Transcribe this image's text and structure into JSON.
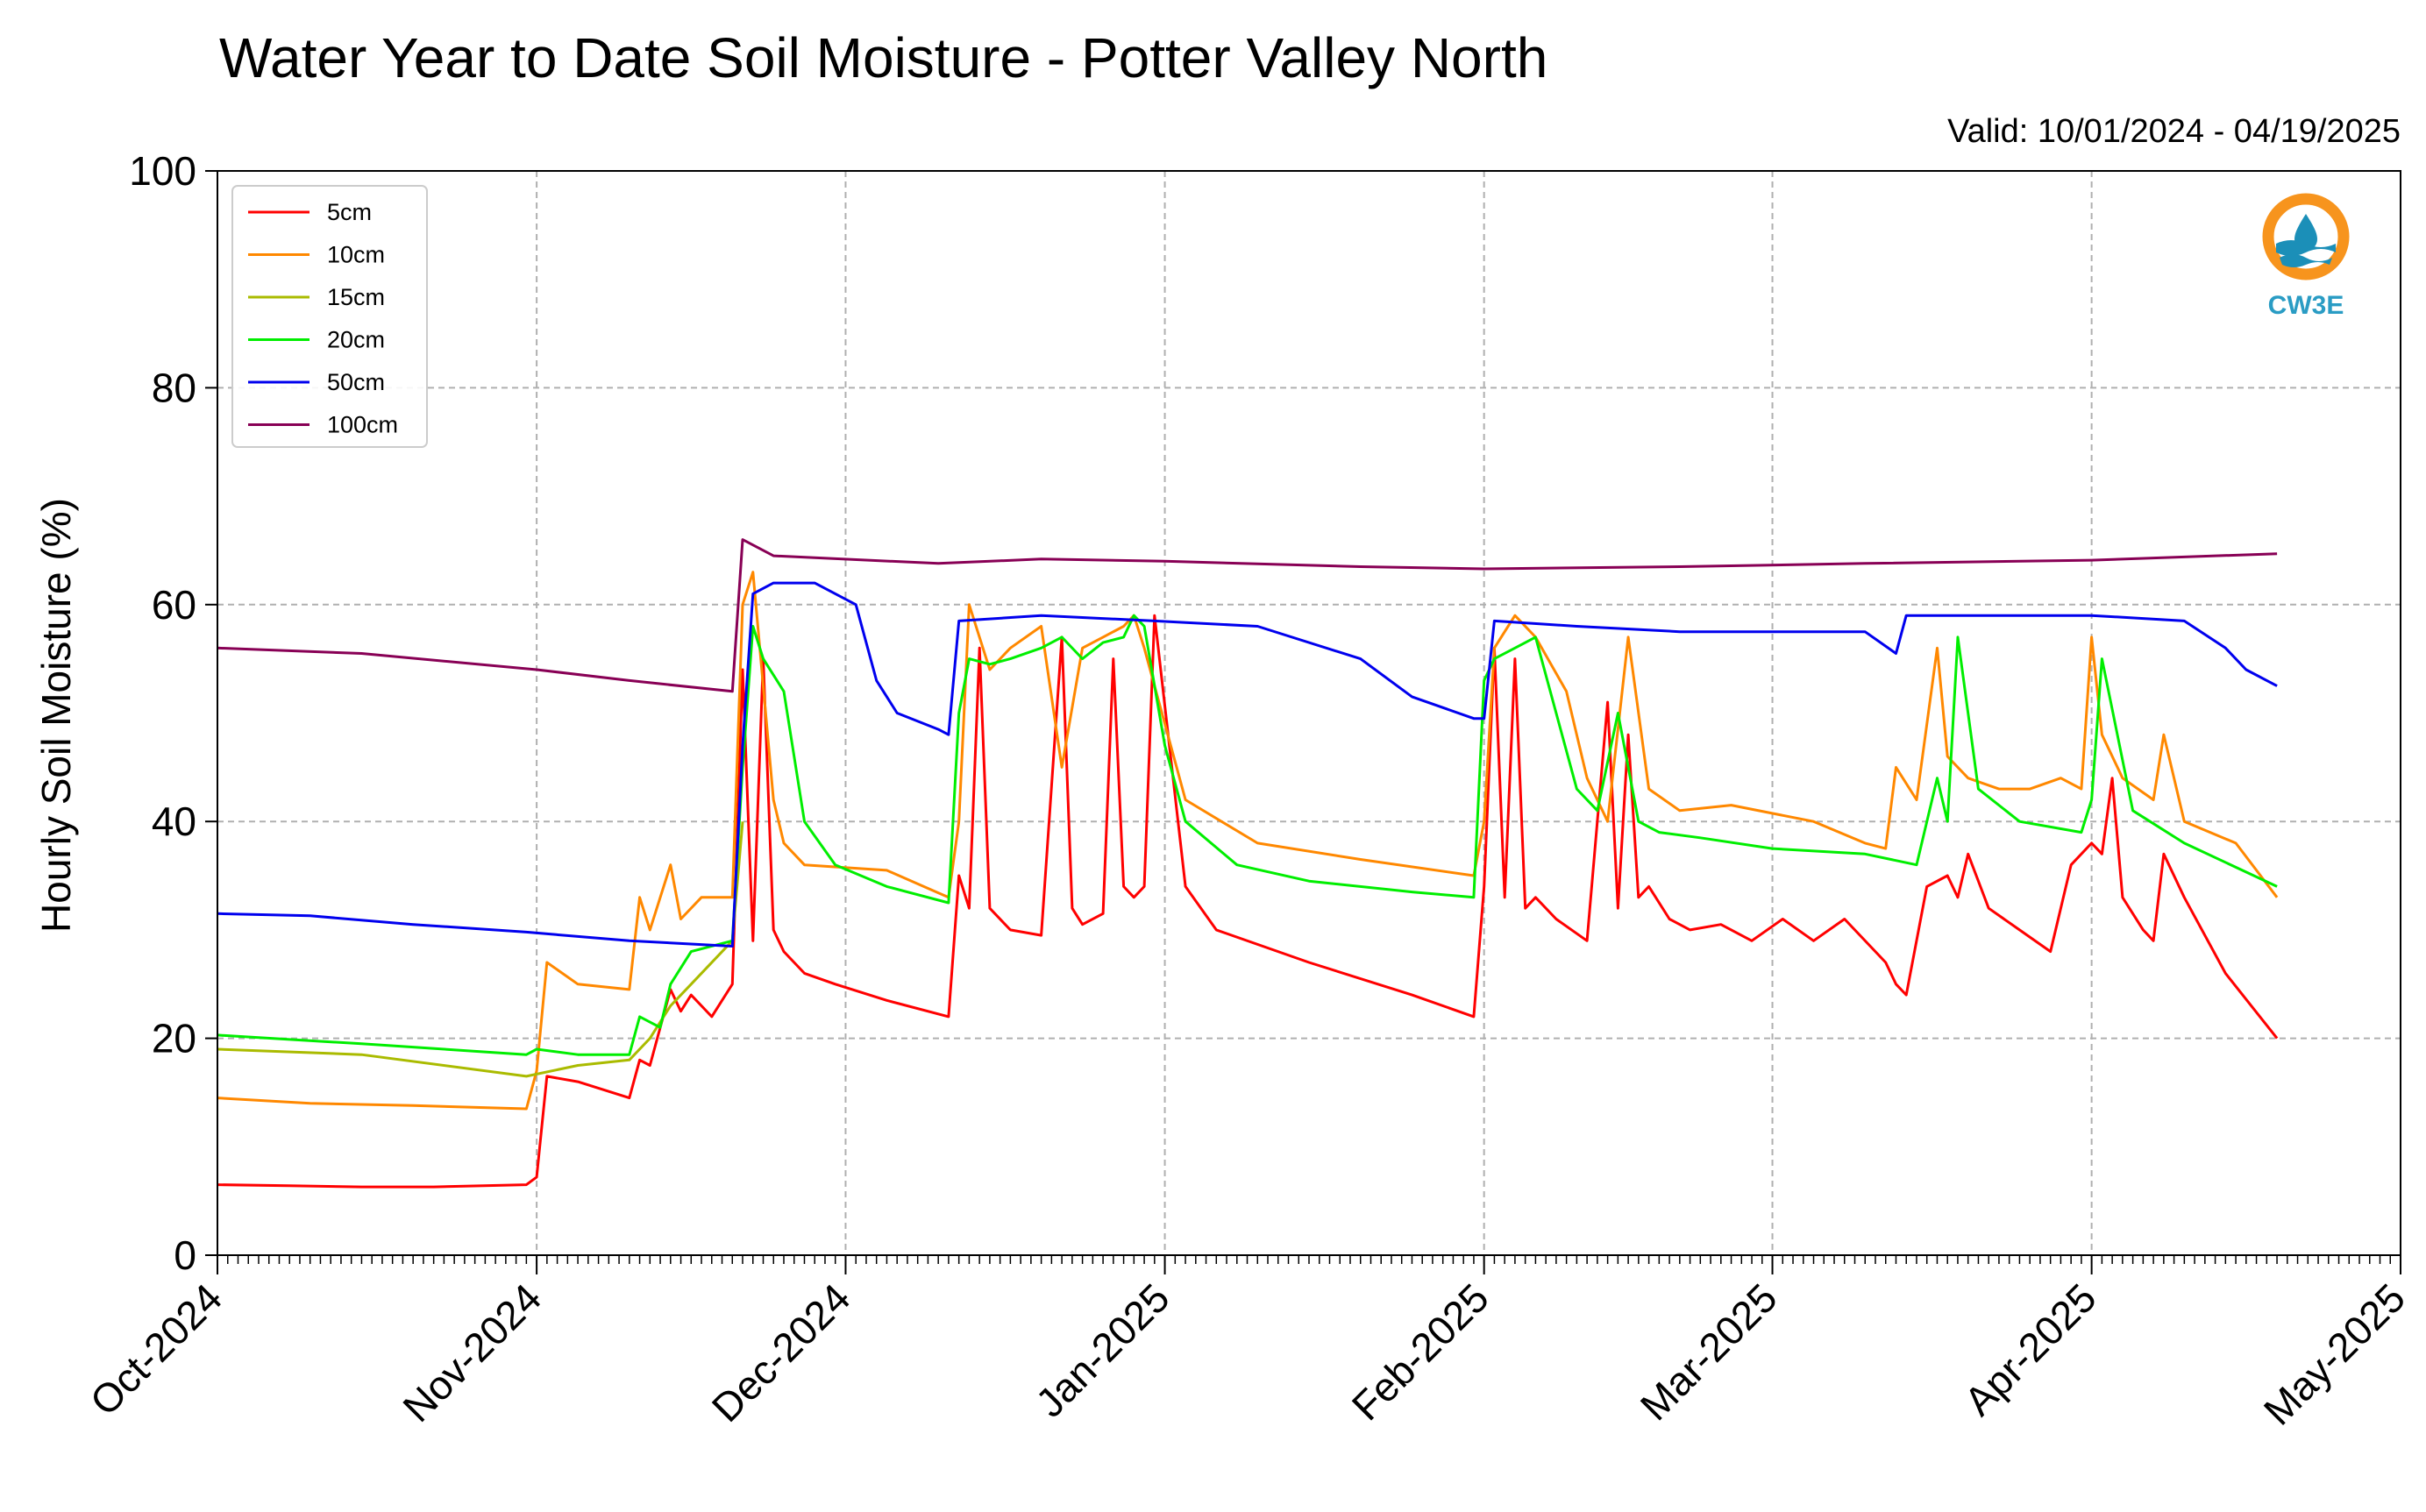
{
  "chart_data": {
    "type": "line",
    "title": "Water Year to Date Soil Moisture - Potter Valley North",
    "subtitle": "Valid: 10/01/2024 - 04/19/2025",
    "ylabel": "Hourly Soil Moisture (%)",
    "xlabel": "",
    "ylim": [
      0,
      100
    ],
    "xlim": [
      "2024-10-01",
      "2025-05-01"
    ],
    "y_ticks": [
      "0",
      "20",
      "40",
      "60",
      "80",
      "100"
    ],
    "x_ticks": [
      "Oct-2024",
      "Nov-2024",
      "Dec-2024",
      "Jan-2025",
      "Feb-2025",
      "Mar-2025",
      "Apr-2025",
      "May-2025"
    ],
    "grid": true,
    "legend_position": "top-left",
    "series": [
      {
        "name": "5cm",
        "color": "#ff0000",
        "x": [
          "2024-10-01",
          "2024-10-08",
          "2024-10-15",
          "2024-10-22",
          "2024-10-31",
          "2024-11-01",
          "2024-11-02",
          "2024-11-05",
          "2024-11-10",
          "2024-11-11",
          "2024-11-12",
          "2024-11-14",
          "2024-11-15",
          "2024-11-16",
          "2024-11-18",
          "2024-11-20",
          "2024-11-21",
          "2024-11-22",
          "2024-11-23",
          "2024-11-24",
          "2024-11-25",
          "2024-11-27",
          "2024-11-30",
          "2024-12-05",
          "2024-12-11",
          "2024-12-12",
          "2024-12-13",
          "2024-12-14",
          "2024-12-15",
          "2024-12-17",
          "2024-12-20",
          "2024-12-22",
          "2024-12-23",
          "2024-12-24",
          "2024-12-26",
          "2024-12-27",
          "2024-12-28",
          "2024-12-29",
          "2024-12-30",
          "2024-12-31",
          "2025-01-03",
          "2025-01-06",
          "2025-01-15",
          "2025-01-25",
          "2025-01-31",
          "2025-02-01",
          "2025-02-02",
          "2025-02-03",
          "2025-02-04",
          "2025-02-05",
          "2025-02-06",
          "2025-02-08",
          "2025-02-11",
          "2025-02-13",
          "2025-02-14",
          "2025-02-15",
          "2025-02-16",
          "2025-02-17",
          "2025-02-19",
          "2025-02-21",
          "2025-02-24",
          "2025-02-27",
          "2025-03-02",
          "2025-03-05",
          "2025-03-08",
          "2025-03-12",
          "2025-03-13",
          "2025-03-14",
          "2025-03-16",
          "2025-03-18",
          "2025-03-19",
          "2025-03-20",
          "2025-03-22",
          "2025-03-25",
          "2025-03-28",
          "2025-03-30",
          "2025-04-01",
          "2025-04-02",
          "2025-04-03",
          "2025-04-04",
          "2025-04-06",
          "2025-04-07",
          "2025-04-08",
          "2025-04-10",
          "2025-04-14",
          "2025-04-19"
        ],
        "values": [
          6.5,
          6.4,
          6.3,
          6.3,
          6.5,
          7.2,
          16.5,
          16,
          14.5,
          18,
          17.5,
          24.5,
          22.5,
          24,
          22,
          25,
          54,
          29,
          55,
          30,
          28,
          26,
          25,
          23.5,
          22,
          35,
          32,
          56,
          32,
          30,
          29.5,
          57,
          32,
          30.5,
          31.5,
          55,
          34,
          33,
          34,
          59,
          34,
          30,
          27,
          24,
          22,
          34,
          56,
          33,
          55,
          32,
          33,
          31,
          29,
          51,
          32,
          48,
          33,
          34,
          31,
          30,
          30.5,
          29,
          31,
          29,
          31,
          27,
          25,
          24,
          34,
          35,
          33,
          37,
          32,
          30,
          28,
          36,
          38,
          37,
          44,
          33,
          30,
          29,
          37,
          33,
          26,
          20
        ]
      },
      {
        "name": "10cm",
        "color": "#ff8800",
        "x": [
          "2024-10-01",
          "2024-10-10",
          "2024-10-20",
          "2024-10-31",
          "2024-11-01",
          "2024-11-02",
          "2024-11-05",
          "2024-11-10",
          "2024-11-11",
          "2024-11-12",
          "2024-11-14",
          "2024-11-15",
          "2024-11-17",
          "2024-11-20",
          "2024-11-21",
          "2024-11-22",
          "2024-11-24",
          "2024-11-25",
          "2024-11-27",
          "2024-12-05",
          "2024-12-11",
          "2024-12-12",
          "2024-12-13",
          "2024-12-15",
          "2024-12-17",
          "2024-12-20",
          "2024-12-22",
          "2024-12-24",
          "2024-12-26",
          "2024-12-28",
          "2024-12-29",
          "2024-12-30",
          "2025-01-03",
          "2025-01-10",
          "2025-01-20",
          "2025-01-31",
          "2025-02-01",
          "2025-02-02",
          "2025-02-04",
          "2025-02-06",
          "2025-02-09",
          "2025-02-11",
          "2025-02-13",
          "2025-02-15",
          "2025-02-17",
          "2025-02-20",
          "2025-02-25",
          "2025-03-05",
          "2025-03-10",
          "2025-03-12",
          "2025-03-13",
          "2025-03-15",
          "2025-03-17",
          "2025-03-18",
          "2025-03-20",
          "2025-03-23",
          "2025-03-26",
          "2025-03-29",
          "2025-03-31",
          "2025-04-01",
          "2025-04-02",
          "2025-04-04",
          "2025-04-07",
          "2025-04-08",
          "2025-04-10",
          "2025-04-15",
          "2025-04-19"
        ],
        "values": [
          14.5,
          14,
          13.8,
          13.5,
          17,
          27,
          25,
          24.5,
          33,
          30,
          36,
          31,
          33,
          33,
          60,
          63,
          42,
          38,
          36,
          35.5,
          33,
          40,
          60,
          54,
          56,
          58,
          45,
          56,
          57,
          58,
          59,
          56,
          42,
          38,
          36.5,
          35,
          40,
          56,
          59,
          57,
          52,
          44,
          40,
          57,
          43,
          41,
          41.5,
          40,
          38,
          37.5,
          45,
          42,
          56,
          46,
          44,
          43,
          43,
          44,
          43,
          57,
          48,
          44,
          42,
          48,
          40,
          38,
          33
        ]
      },
      {
        "name": "15cm",
        "color": "#aabb00",
        "x": [
          "2024-10-01",
          "2024-10-15",
          "2024-10-31",
          "2024-11-05",
          "2024-11-10",
          "2024-11-12",
          "2024-11-14",
          "2024-11-16",
          "2024-11-20",
          "2024-11-21"
        ],
        "values": [
          19,
          18.5,
          16.5,
          17.5,
          18,
          20,
          23,
          25,
          29,
          40
        ]
      },
      {
        "name": "20cm",
        "color": "#00ee00",
        "x": [
          "2024-10-01",
          "2024-10-15",
          "2024-10-31",
          "2024-11-01",
          "2024-11-05",
          "2024-11-10",
          "2024-11-11",
          "2024-11-13",
          "2024-11-14",
          "2024-11-16",
          "2024-11-20",
          "2024-11-21",
          "2024-11-22",
          "2024-11-23",
          "2024-11-25",
          "2024-11-27",
          "2024-11-30",
          "2024-12-05",
          "2024-12-11",
          "2024-12-12",
          "2024-12-13",
          "2024-12-15",
          "2024-12-17",
          "2024-12-20",
          "2024-12-22",
          "2024-12-24",
          "2024-12-26",
          "2024-12-28",
          "2024-12-29",
          "2024-12-30",
          "2025-01-01",
          "2025-01-03",
          "2025-01-08",
          "2025-01-15",
          "2025-01-25",
          "2025-01-31",
          "2025-02-01",
          "2025-02-02",
          "2025-02-04",
          "2025-02-06",
          "2025-02-08",
          "2025-02-10",
          "2025-02-12",
          "2025-02-14",
          "2025-02-16",
          "2025-02-18",
          "2025-02-22",
          "2025-03-01",
          "2025-03-10",
          "2025-03-15",
          "2025-03-17",
          "2025-03-18",
          "2025-03-19",
          "2025-03-21",
          "2025-03-25",
          "2025-03-31",
          "2025-04-01",
          "2025-04-02",
          "2025-04-05",
          "2025-04-10",
          "2025-04-19"
        ],
        "values": [
          20.3,
          19.5,
          18.5,
          19,
          18.5,
          18.5,
          22,
          21,
          25,
          28,
          29,
          45,
          58,
          55,
          52,
          40,
          36,
          34,
          32.5,
          50,
          55,
          54.5,
          55,
          56,
          57,
          55,
          56.5,
          57,
          59,
          58,
          47,
          40,
          36,
          34.5,
          33.5,
          33,
          53,
          55,
          56,
          57,
          50,
          43,
          41,
          50,
          40,
          39,
          38.5,
          37.5,
          37,
          36,
          44,
          40,
          57,
          43,
          40,
          39,
          42,
          55,
          41,
          38,
          34
        ]
      },
      {
        "name": "50cm",
        "color": "#0000ee",
        "x": [
          "2024-10-01",
          "2024-10-10",
          "2024-10-20",
          "2024-10-31",
          "2024-11-10",
          "2024-11-20",
          "2024-11-21",
          "2024-11-22",
          "2024-11-24",
          "2024-11-28",
          "2024-12-02",
          "2024-12-04",
          "2024-12-06",
          "2024-12-10",
          "2024-12-11",
          "2024-12-12",
          "2024-12-20",
          "2024-12-31",
          "2025-01-10",
          "2025-01-20",
          "2025-01-25",
          "2025-01-31",
          "2025-02-01",
          "2025-02-02",
          "2025-02-10",
          "2025-02-20",
          "2025-03-01",
          "2025-03-10",
          "2025-03-13",
          "2025-03-14",
          "2025-03-20",
          "2025-04-01",
          "2025-04-10",
          "2025-04-14",
          "2025-04-16",
          "2025-04-19"
        ],
        "values": [
          31.5,
          31.3,
          30.5,
          29.8,
          29,
          28.5,
          47,
          61,
          62,
          62,
          60,
          53,
          50,
          48.5,
          48,
          58.5,
          59,
          58.5,
          58,
          55,
          51.5,
          49.5,
          49.5,
          58.5,
          58,
          57.5,
          57.5,
          57.5,
          55.5,
          59,
          59,
          59,
          58.5,
          56,
          54,
          52.5
        ]
      },
      {
        "name": "100cm",
        "color": "#880055",
        "x": [
          "2024-10-01",
          "2024-10-15",
          "2024-11-01",
          "2024-11-10",
          "2024-11-20",
          "2024-11-21",
          "2024-11-24",
          "2024-12-10",
          "2024-12-20",
          "2025-01-01",
          "2025-01-20",
          "2025-02-01",
          "2025-02-20",
          "2025-03-10",
          "2025-04-01",
          "2025-04-19"
        ],
        "values": [
          56,
          55.5,
          54,
          53,
          52,
          66,
          64.5,
          63.8,
          64.2,
          64,
          63.5,
          63.3,
          63.5,
          63.8,
          64.1,
          64.7
        ]
      }
    ]
  },
  "logo": {
    "text": "CW3E",
    "ring_color": "#f7941d",
    "wave_color": "#1b8fb8",
    "text_color": "#2a9cc4"
  }
}
